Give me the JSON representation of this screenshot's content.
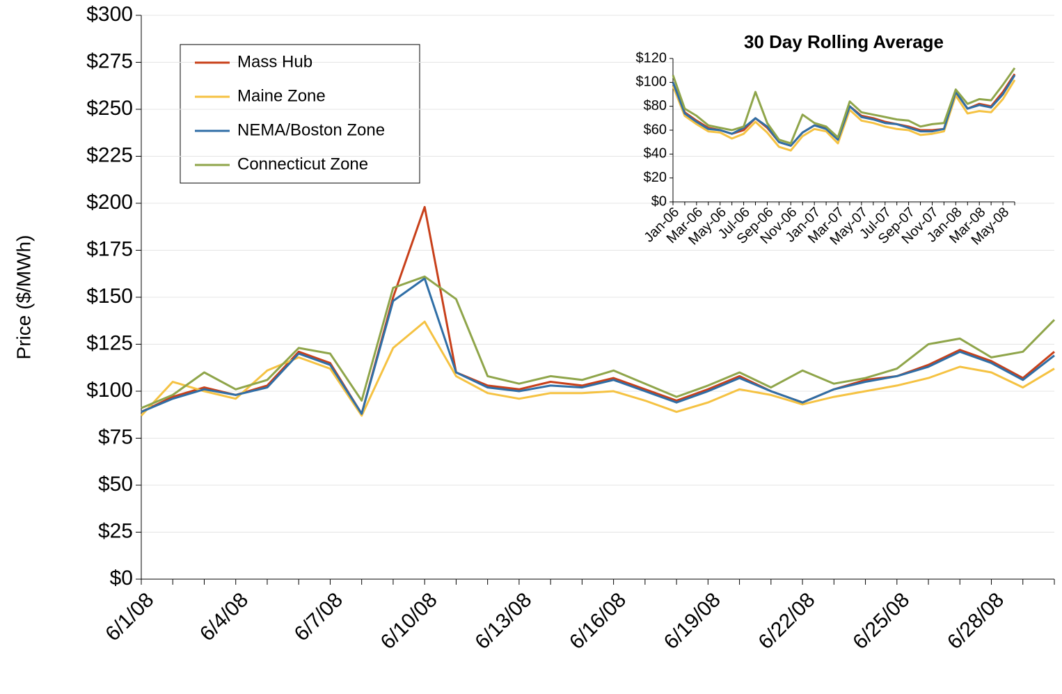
{
  "chart_data": [
    {
      "type": "line",
      "y_label": "Price ($/MWh)",
      "categories": [
        "6/1/08",
        null,
        null,
        "6/4/08",
        null,
        null,
        "6/7/08",
        null,
        null,
        "6/10/08",
        null,
        null,
        "6/13/08",
        null,
        null,
        "6/16/08",
        null,
        null,
        "6/19/08",
        null,
        null,
        "6/22/08",
        null,
        null,
        "6/25/08",
        null,
        null,
        "6/28/08",
        null,
        null
      ],
      "series": [
        {
          "name": "Mass Hub",
          "color": "#c8401a",
          "values": [
            89,
            97,
            102,
            98,
            103,
            121,
            115,
            88,
            150,
            198,
            110,
            103,
            101,
            105,
            103,
            107,
            101,
            95,
            101,
            108,
            100,
            94,
            101,
            106,
            108,
            114,
            122,
            116,
            107,
            121
          ]
        },
        {
          "name": "Maine Zone",
          "color": "#f5c242",
          "values": [
            87,
            105,
            100,
            96,
            111,
            118,
            112,
            87,
            123,
            137,
            108,
            99,
            96,
            99,
            99,
            100,
            95,
            89,
            94,
            101,
            98,
            93,
            97,
            100,
            103,
            107,
            113,
            110,
            102,
            112
          ]
        },
        {
          "name": "NEMA/Boston Zone",
          "color": "#2f6ea6",
          "values": [
            89,
            96,
            101,
            98,
            102,
            120,
            114,
            88,
            148,
            160,
            110,
            102,
            100,
            103,
            102,
            106,
            100,
            94,
            100,
            107,
            100,
            94,
            101,
            105,
            108,
            113,
            121,
            115,
            106,
            119
          ]
        },
        {
          "name": "Connecticut Zone",
          "color": "#8fa54a",
          "values": [
            91,
            98,
            110,
            101,
            106,
            123,
            120,
            95,
            155,
            161,
            149,
            108,
            104,
            108,
            106,
            111,
            104,
            97,
            103,
            110,
            102,
            111,
            104,
            107,
            112,
            125,
            128,
            118,
            121,
            138
          ]
        }
      ],
      "ylim": [
        0,
        300
      ],
      "yticks": [
        {
          "value": 0,
          "label": "$0"
        },
        {
          "value": 25,
          "label": "$25"
        },
        {
          "value": 50,
          "label": "$50"
        },
        {
          "value": 75,
          "label": "$75"
        },
        {
          "value": 100,
          "label": "$100"
        },
        {
          "value": 125,
          "label": "$125"
        },
        {
          "value": 150,
          "label": "$150"
        },
        {
          "value": 175,
          "label": "$175"
        },
        {
          "value": 200,
          "label": "$200"
        },
        {
          "value": 225,
          "label": "$225"
        },
        {
          "value": 250,
          "label": "$250"
        },
        {
          "value": 275,
          "label": "$275"
        },
        {
          "value": 300,
          "label": "$300"
        }
      ],
      "grid": true
    },
    {
      "type": "line",
      "title": "30 Day Rolling Average",
      "categories": [
        "Jan-06",
        null,
        "Mar-06",
        null,
        "May-06",
        null,
        "Jul-06",
        null,
        "Sep-06",
        null,
        "Nov-06",
        null,
        "Jan-07",
        null,
        "Mar-07",
        null,
        "May-07",
        null,
        "Jul-07",
        null,
        "Sep-07",
        null,
        "Nov-07",
        null,
        "Jan-08",
        null,
        "Mar-08",
        null,
        "May-08",
        null
      ],
      "series": [
        {
          "name": "Mass Hub",
          "color": "#c8401a",
          "values": [
            100,
            75,
            68,
            62,
            60,
            57,
            60,
            70,
            62,
            50,
            47,
            58,
            64,
            62,
            52,
            80,
            72,
            70,
            67,
            65,
            63,
            60,
            60,
            61,
            92,
            78,
            82,
            80,
            92,
            107
          ]
        },
        {
          "name": "Maine Zone",
          "color": "#f5c242",
          "values": [
            97,
            72,
            65,
            59,
            58,
            53,
            57,
            67,
            58,
            46,
            43,
            55,
            61,
            59,
            49,
            77,
            68,
            66,
            63,
            61,
            60,
            56,
            57,
            59,
            89,
            74,
            76,
            75,
            86,
            102
          ]
        },
        {
          "name": "NEMA/Boston Zone",
          "color": "#2f6ea6",
          "values": [
            100,
            74,
            67,
            61,
            60,
            57,
            62,
            70,
            63,
            50,
            47,
            58,
            64,
            61,
            52,
            80,
            71,
            69,
            66,
            65,
            62,
            59,
            59,
            61,
            92,
            78,
            81,
            79,
            90,
            106
          ]
        },
        {
          "name": "Connecticut Zone",
          "color": "#8fa54a",
          "values": [
            106,
            78,
            72,
            64,
            62,
            60,
            63,
            92,
            66,
            52,
            49,
            73,
            66,
            63,
            54,
            84,
            75,
            73,
            71,
            69,
            68,
            63,
            65,
            66,
            94,
            82,
            86,
            85,
            98,
            112
          ]
        }
      ],
      "ylim": [
        0,
        120
      ],
      "yticks": [
        {
          "value": 0,
          "label": "$0"
        },
        {
          "value": 20,
          "label": "$20"
        },
        {
          "value": 40,
          "label": "$40"
        },
        {
          "value": 60,
          "label": "$60"
        },
        {
          "value": 80,
          "label": "$80"
        },
        {
          "value": 100,
          "label": "$100"
        },
        {
          "value": 120,
          "label": "$120"
        }
      ],
      "grid": false
    }
  ]
}
